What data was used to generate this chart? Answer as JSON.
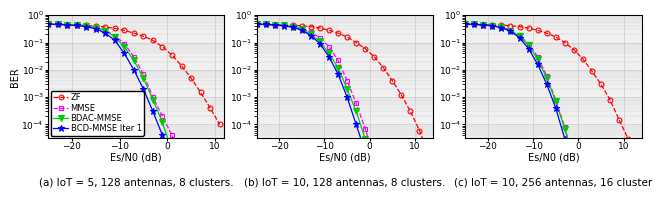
{
  "ylim_log": [
    -4.5,
    0
  ],
  "ylim": [
    1e-05,
    1.0
  ],
  "yticks": [
    0.0001,
    0.001,
    0.01,
    0.1,
    1.0
  ],
  "legend_labels": [
    "ZF",
    "MMSE",
    "BDAC-MMSE",
    "BCD-MMSE Iter 1"
  ],
  "xlabel": "Es/N0 (dB)",
  "ylabel": "BER",
  "grid_color": "#cccccc",
  "bg_color": "#f0f0f0",
  "fontsize_caption": 7.5,
  "fontsize_axis": 7,
  "fontsize_legend": 6.0,
  "fontsize_tick": 6.5,
  "panels": [
    {
      "caption": "(a) IoT = 5, 128 antennas, 8 clusters.",
      "xlim": [
        -25,
        12
      ],
      "xticks": [
        -20,
        -10,
        0,
        10
      ],
      "series": {
        "ZF": {
          "color": "#ff0000",
          "linestyle": "--",
          "x": [
            -25,
            -23,
            -21,
            -19,
            -17,
            -15,
            -13,
            -11,
            -9,
            -7,
            -5,
            -3,
            -1,
            1,
            3,
            5,
            7,
            9,
            11
          ],
          "y": [
            0.47,
            0.46,
            0.45,
            0.44,
            0.42,
            0.4,
            0.37,
            0.33,
            0.28,
            0.22,
            0.17,
            0.12,
            0.07,
            0.035,
            0.014,
            0.005,
            0.0015,
            0.0004,
            0.0001
          ]
        },
        "MMSE": {
          "color": "#ff00ff",
          "linestyle": "--",
          "x": [
            -25,
            -23,
            -21,
            -19,
            -17,
            -15,
            -13,
            -11,
            -9,
            -7,
            -5,
            -3,
            -1,
            1,
            3
          ],
          "y": [
            0.47,
            0.46,
            0.45,
            0.43,
            0.4,
            0.35,
            0.28,
            0.18,
            0.09,
            0.03,
            0.007,
            0.001,
            0.0002,
            4e-05,
            5e-06
          ]
        },
        "BDAC-MMSE": {
          "color": "#00cc00",
          "linestyle": "-",
          "x": [
            -25,
            -23,
            -21,
            -19,
            -17,
            -15,
            -13,
            -11,
            -9,
            -7,
            -5,
            -3,
            -1,
            1,
            3
          ],
          "y": [
            0.47,
            0.46,
            0.45,
            0.43,
            0.4,
            0.35,
            0.27,
            0.16,
            0.07,
            0.022,
            0.005,
            0.0008,
            0.00012,
            1e-05,
            1e-06
          ]
        },
        "BCD-MMSE Iter 1": {
          "color": "#0000ff",
          "linestyle": "-",
          "x": [
            -25,
            -23,
            -21,
            -19,
            -17,
            -15,
            -13,
            -11,
            -9,
            -7,
            -5,
            -3,
            -1,
            1,
            3
          ],
          "y": [
            0.47,
            0.46,
            0.44,
            0.42,
            0.38,
            0.32,
            0.22,
            0.12,
            0.04,
            0.01,
            0.002,
            0.0003,
            4e-05,
            4e-06,
            4e-07
          ]
        }
      }
    },
    {
      "caption": "(b) IoT = 10, 128 antennas, 8 clusters.",
      "xlim": [
        -25,
        14
      ],
      "xticks": [
        -20,
        -10,
        0,
        10
      ],
      "series": {
        "ZF": {
          "color": "#ff0000",
          "linestyle": "--",
          "x": [
            -25,
            -23,
            -21,
            -19,
            -17,
            -15,
            -13,
            -11,
            -9,
            -7,
            -5,
            -3,
            -1,
            1,
            3,
            5,
            7,
            9,
            11,
            13
          ],
          "y": [
            0.47,
            0.46,
            0.45,
            0.44,
            0.43,
            0.41,
            0.38,
            0.34,
            0.28,
            0.22,
            0.16,
            0.1,
            0.06,
            0.03,
            0.012,
            0.004,
            0.0012,
            0.0003,
            6e-05,
            8e-06
          ]
        },
        "MMSE": {
          "color": "#ff00ff",
          "linestyle": "--",
          "x": [
            -25,
            -23,
            -21,
            -19,
            -17,
            -15,
            -13,
            -11,
            -9,
            -7,
            -5,
            -3,
            -1,
            1,
            3
          ],
          "y": [
            0.47,
            0.46,
            0.44,
            0.42,
            0.38,
            0.32,
            0.24,
            0.15,
            0.07,
            0.022,
            0.004,
            0.0006,
            7e-05,
            6e-06,
            4e-07
          ]
        },
        "BDAC-MMSE": {
          "color": "#00cc00",
          "linestyle": "-",
          "x": [
            -25,
            -23,
            -21,
            -19,
            -17,
            -15,
            -13,
            -11,
            -9,
            -7,
            -5,
            -3,
            -1,
            1,
            3
          ],
          "y": [
            0.47,
            0.46,
            0.44,
            0.42,
            0.38,
            0.3,
            0.2,
            0.11,
            0.04,
            0.012,
            0.002,
            0.0003,
            3e-05,
            2e-06,
            1e-07
          ]
        },
        "BCD-MMSE Iter 1": {
          "color": "#0000ff",
          "linestyle": "-",
          "x": [
            -25,
            -23,
            -21,
            -19,
            -17,
            -15,
            -13,
            -11,
            -9,
            -7,
            -5,
            -3,
            -1,
            1,
            3
          ],
          "y": [
            0.47,
            0.46,
            0.44,
            0.41,
            0.36,
            0.28,
            0.18,
            0.09,
            0.03,
            0.007,
            0.001,
            0.0001,
            1e-05,
            1e-06,
            1e-07
          ]
        }
      }
    },
    {
      "caption": "(c) IoT = 10, 256 antennas, 16 cluster",
      "xlim": [
        -25,
        14
      ],
      "xticks": [
        -20,
        -10,
        0,
        10
      ],
      "series": {
        "ZF": {
          "color": "#ff0000",
          "linestyle": "--",
          "x": [
            -25,
            -23,
            -21,
            -19,
            -17,
            -15,
            -13,
            -11,
            -9,
            -7,
            -5,
            -3,
            -1,
            1,
            3,
            5,
            7,
            9,
            11,
            13
          ],
          "y": [
            0.47,
            0.46,
            0.45,
            0.44,
            0.43,
            0.41,
            0.38,
            0.34,
            0.28,
            0.22,
            0.16,
            0.1,
            0.055,
            0.025,
            0.009,
            0.003,
            0.0008,
            0.00015,
            3e-05,
            6e-06
          ]
        },
        "MMSE": {
          "color": "#ff00ff",
          "linestyle": "--",
          "x": [
            -25,
            -23,
            -21,
            -19,
            -17,
            -15,
            -13,
            -11,
            -9,
            -7,
            -5,
            -3,
            -1,
            1
          ],
          "y": [
            0.47,
            0.46,
            0.44,
            0.41,
            0.36,
            0.28,
            0.18,
            0.09,
            0.03,
            0.006,
            0.0008,
            8e-05,
            5e-06,
            3e-07
          ]
        },
        "BDAC-MMSE": {
          "color": "#00cc00",
          "linestyle": "-",
          "x": [
            -25,
            -23,
            -21,
            -19,
            -17,
            -15,
            -13,
            -11,
            -9,
            -7,
            -5,
            -3,
            -1,
            1,
            3
          ],
          "y": [
            0.47,
            0.46,
            0.44,
            0.41,
            0.36,
            0.27,
            0.17,
            0.08,
            0.025,
            0.005,
            0.0007,
            7e-05,
            4e-06,
            2e-07,
            1e-08
          ]
        },
        "BCD-MMSE Iter 1": {
          "color": "#0000ff",
          "linestyle": "-",
          "x": [
            -25,
            -23,
            -21,
            -19,
            -17,
            -15,
            -13,
            -11,
            -9,
            -7,
            -5,
            -3,
            -1,
            1
          ],
          "y": [
            0.47,
            0.46,
            0.44,
            0.41,
            0.35,
            0.26,
            0.15,
            0.06,
            0.016,
            0.003,
            0.0004,
            3e-05,
            2e-06,
            1e-07
          ]
        }
      }
    }
  ]
}
